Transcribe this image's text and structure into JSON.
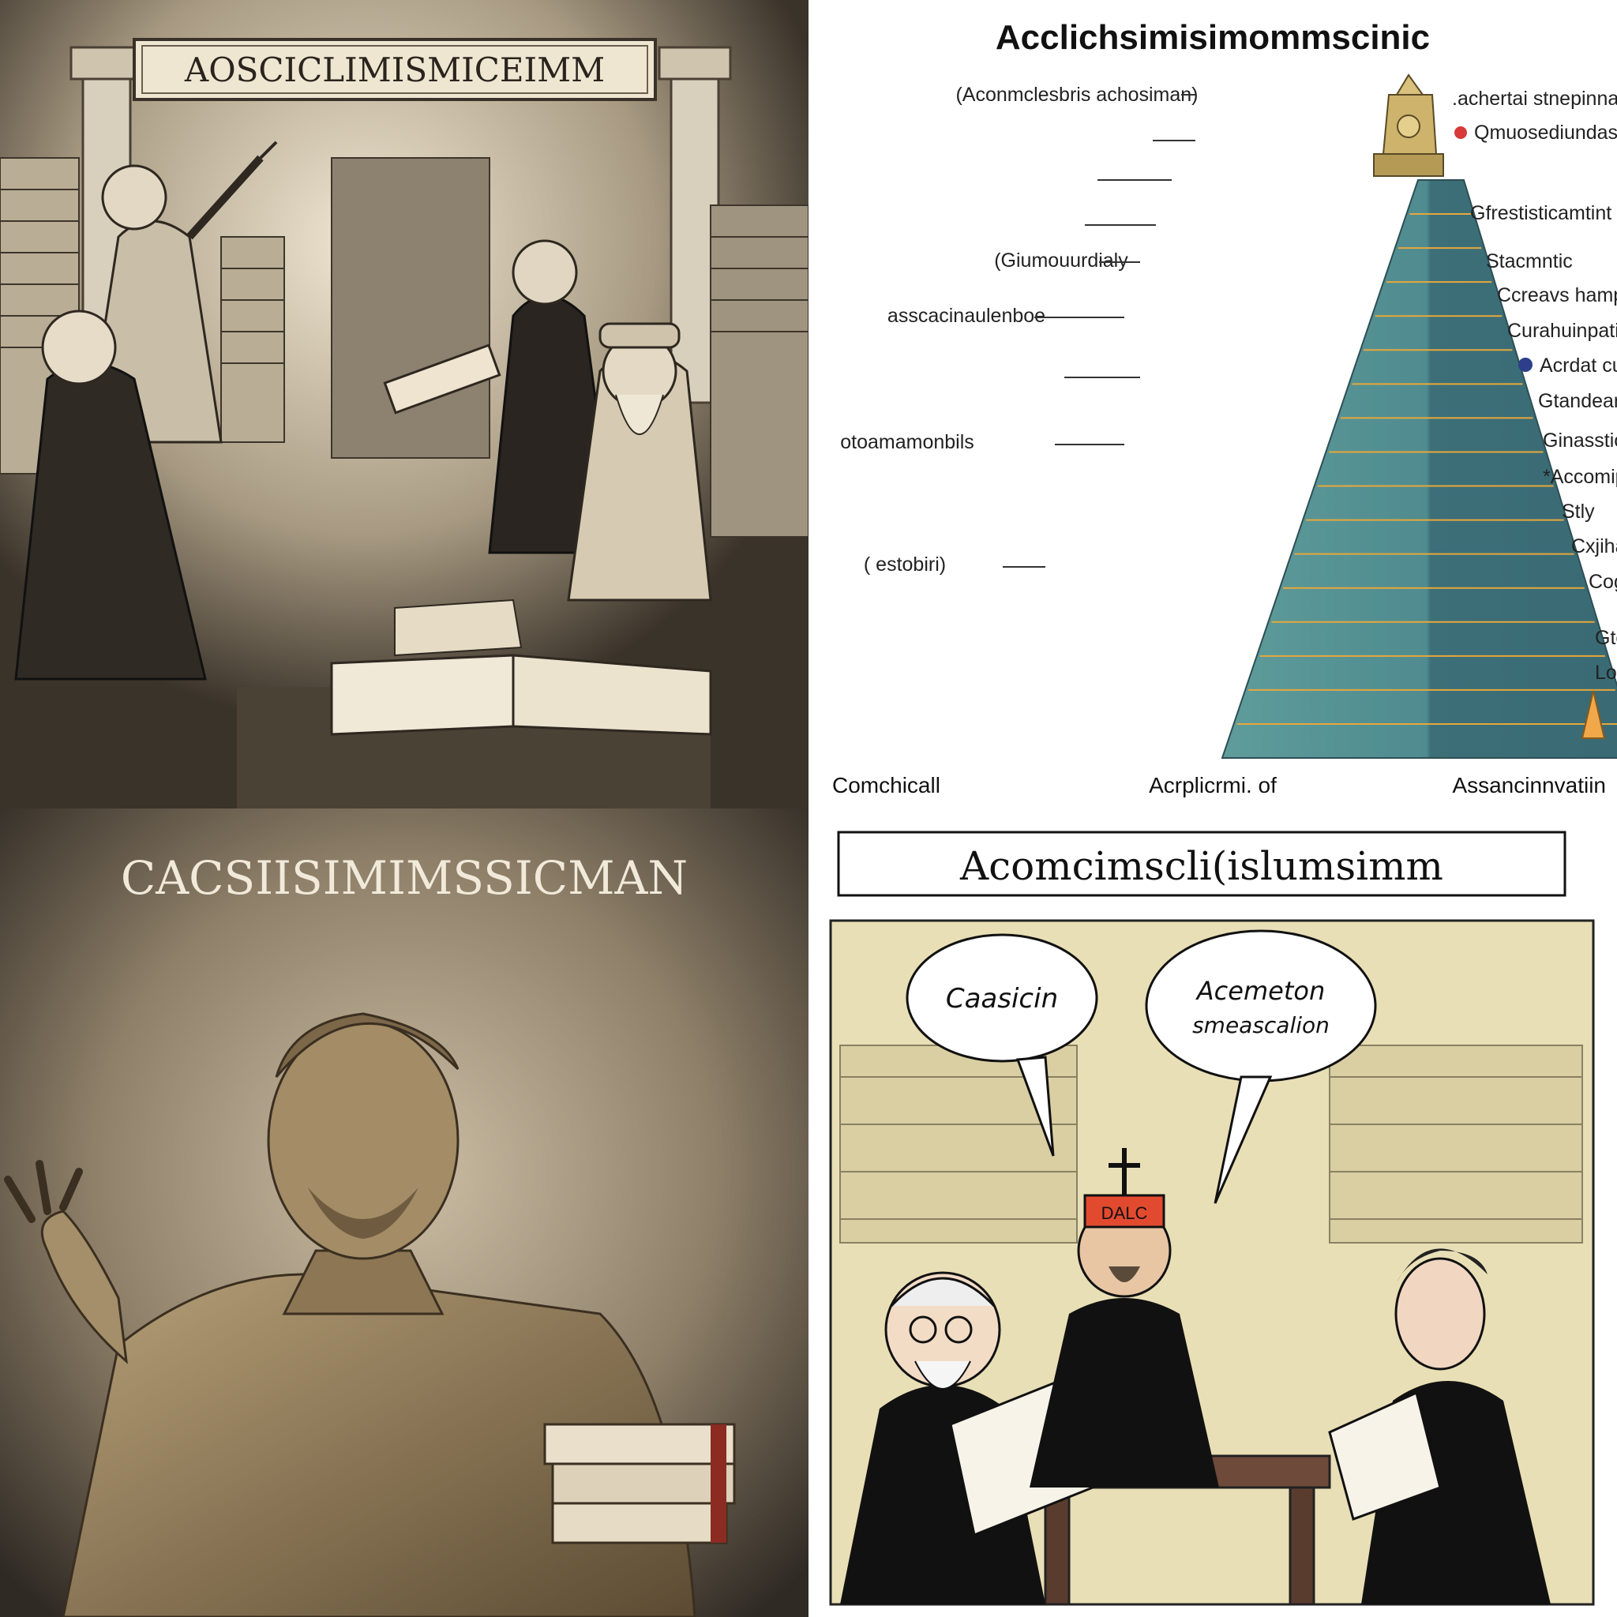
{
  "panels": {
    "engraving": {
      "banner_title": "AOSCICLIMISMICEIMM"
    },
    "pyramid": {
      "title": "Acclichsimisimommscinic",
      "left_labels": [
        "(Aconmclesbris achosiman)",
        "(Giumouurdialy",
        "asscacinaulenboe",
        "otoamamonbils",
        "( estobiri)"
      ],
      "right_labels": [
        ".achertai stnepinna nc cohnilc",
        "Qmuosediundascon",
        "Gfrestisticamtint",
        "Stacmntic",
        "Ccreavs hamperqincamchtc",
        "Curahuinpatioiis",
        "Acrdat curviulatiny",
        "Gtandeansy",
        "Ginasstionpent ydishtic",
        "*Accomipenrtiy",
        "Stly",
        "Cxjihantion",
        "Cogh",
        "Gteaardlay",
        "Lotisets"
      ],
      "bottom_labels": [
        "Comchicall",
        "Acrplicrmi. of",
        "Assancinnvatiin"
      ],
      "colors": {
        "pyramid_left": "#4f8b8f",
        "pyramid_right": "#3c6f78",
        "stripe": "#e6a83c",
        "dot_red": "#d83a3a",
        "dot_blue": "#2d3f8a"
      }
    },
    "statue": {
      "title": "CACSIISIMIMSSICMAN"
    },
    "cartoon": {
      "title": "Acomcimscli(islumsimm",
      "bubble_left": "Caasicin",
      "bubble_right_line1": "Acemeton",
      "bubble_right_line2": "smeascalion",
      "hat_text": "DALC"
    }
  }
}
